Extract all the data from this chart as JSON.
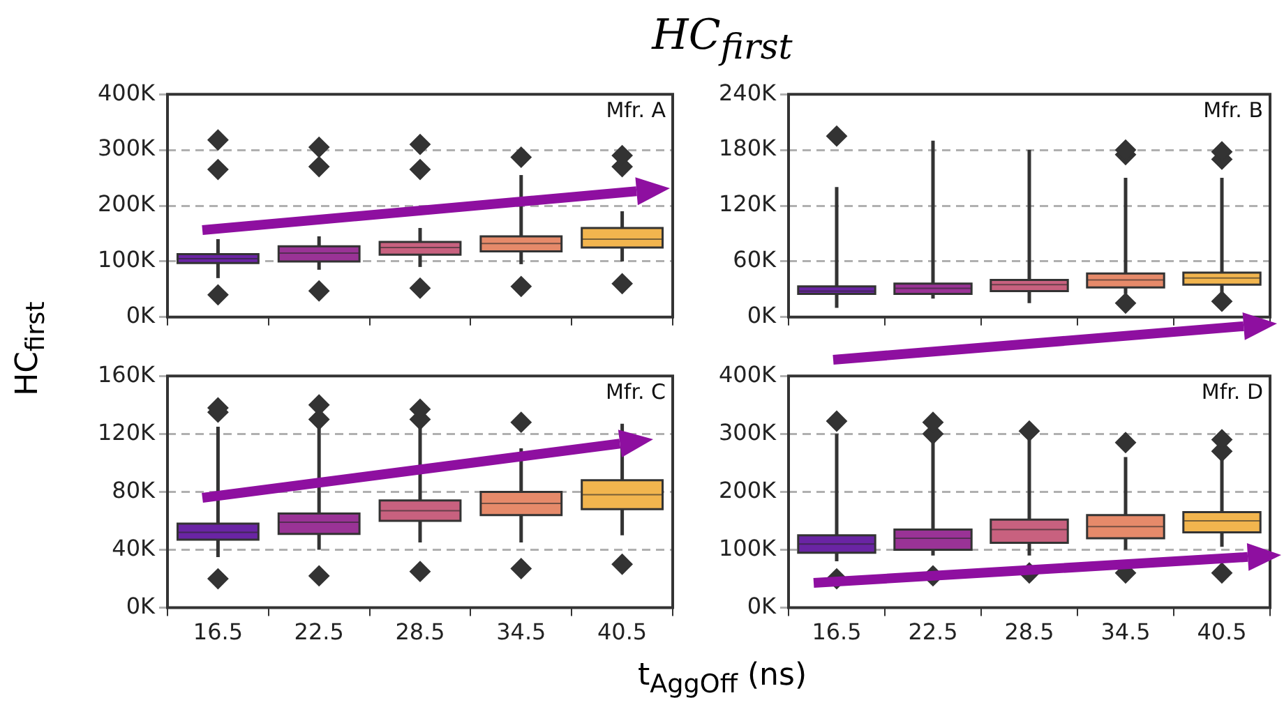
{
  "chart_data": [
    {
      "type": "box",
      "title": "HC$_{first}$",
      "ylabel": "HC$_{first}$",
      "xlabel": "t$_{AggOff}$ (ns)",
      "annotations": [
        "Mfr. A"
      ],
      "categories": [
        "16.5",
        "22.5",
        "28.5",
        "34.5",
        "40.5"
      ],
      "colors": [
        "#6a24a4",
        "#9a3396",
        "#c8617f",
        "#e68a6a",
        "#f2b54e"
      ],
      "marker": "diamond",
      "grid": "y",
      "tick_labels": "y",
      "ylim": [
        0,
        400000
      ],
      "yticks": [
        {
          "value": 0,
          "label": "0K"
        },
        {
          "value": 100000,
          "label": "100K"
        },
        {
          "value": 200000,
          "label": "200K"
        },
        {
          "value": 300000,
          "label": "300K"
        },
        {
          "value": 400000,
          "label": "400K"
        }
      ],
      "boxes": [
        {
          "low": 70000,
          "q1": 97000,
          "median": 105000,
          "q3": 113000,
          "high": 140000,
          "outliers": [
            40000,
            265000,
            318000
          ]
        },
        {
          "low": 85000,
          "q1": 100000,
          "median": 115000,
          "q3": 127000,
          "high": 145000,
          "outliers": [
            47000,
            270000,
            305000
          ]
        },
        {
          "low": 90000,
          "q1": 112000,
          "median": 125000,
          "q3": 135000,
          "high": 160000,
          "outliers": [
            52000,
            265000,
            310000
          ]
        },
        {
          "low": 95000,
          "q1": 118000,
          "median": 132000,
          "q3": 145000,
          "high": 255000,
          "outliers": [
            55000,
            287000
          ]
        },
        {
          "low": 100000,
          "q1": 125000,
          "median": 140000,
          "q3": 160000,
          "high": 190000,
          "outliers": [
            60000,
            270000,
            290000
          ]
        }
      ]
    },
    {
      "type": "box",
      "annotations": [
        "Mfr. B"
      ],
      "categories": [
        "16.5",
        "22.5",
        "28.5",
        "34.5",
        "40.5"
      ],
      "colors": [
        "#6a24a4",
        "#9a3396",
        "#c8617f",
        "#e68a6a",
        "#f2b54e"
      ],
      "marker": "diamond",
      "grid": "y",
      "tick_labels": "y",
      "ylim": [
        0,
        240000
      ],
      "yticks": [
        {
          "value": 0,
          "label": "0K"
        },
        {
          "value": 60000,
          "label": "60K"
        },
        {
          "value": 120000,
          "label": "120K"
        },
        {
          "value": 180000,
          "label": "180K"
        },
        {
          "value": 240000,
          "label": "240K"
        }
      ],
      "boxes": [
        {
          "low": 10000,
          "q1": 25000,
          "median": 28000,
          "q3": 33000,
          "high": 140000,
          "outliers": [
            195000
          ]
        },
        {
          "low": 20000,
          "q1": 25000,
          "median": 31000,
          "q3": 36000,
          "high": 190000
        },
        {
          "low": 15000,
          "q1": 28000,
          "median": 35000,
          "q3": 40000,
          "high": 180000
        },
        {
          "low": 25000,
          "q1": 32000,
          "median": 40000,
          "q3": 47000,
          "high": 150000,
          "outliers": [
            15000,
            175000,
            180000
          ]
        },
        {
          "low": 25000,
          "q1": 35000,
          "median": 42000,
          "q3": 48000,
          "high": 150000,
          "outliers": [
            17000,
            170000,
            178000
          ]
        }
      ]
    },
    {
      "type": "box",
      "annotations": [
        "Mfr. C"
      ],
      "categories": [
        "16.5",
        "22.5",
        "28.5",
        "34.5",
        "40.5"
      ],
      "colors": [
        "#6a24a4",
        "#9a3396",
        "#c8617f",
        "#e68a6a",
        "#f2b54e"
      ],
      "marker": "diamond",
      "grid": "y",
      "ylim": [
        0,
        160000
      ],
      "yticks": [
        {
          "value": 0,
          "label": "0K"
        },
        {
          "value": 40000,
          "label": "40K"
        },
        {
          "value": 80000,
          "label": "80K"
        },
        {
          "value": 120000,
          "label": "120K"
        },
        {
          "value": 160000,
          "label": "160K"
        }
      ],
      "boxes": [
        {
          "low": 35000,
          "q1": 47000,
          "median": 52000,
          "q3": 58000,
          "high": 125000,
          "outliers": [
            20000,
            135000,
            138000
          ]
        },
        {
          "low": 40000,
          "q1": 51000,
          "median": 59000,
          "q3": 65000,
          "high": 125000,
          "outliers": [
            22000,
            130000,
            140000
          ]
        },
        {
          "low": 45000,
          "q1": 60000,
          "median": 67000,
          "q3": 74000,
          "high": 125000,
          "outliers": [
            25000,
            130000,
            137000
          ]
        },
        {
          "low": 45000,
          "q1": 64000,
          "median": 72000,
          "q3": 80000,
          "high": 110000,
          "outliers": [
            27000,
            128000
          ]
        },
        {
          "low": 50000,
          "q1": 68000,
          "median": 78000,
          "q3": 88000,
          "high": 127000,
          "outliers": [
            30000
          ]
        }
      ]
    },
    {
      "type": "box",
      "annotations": [
        "Mfr. D"
      ],
      "categories": [
        "16.5",
        "22.5",
        "28.5",
        "34.5",
        "40.5"
      ],
      "colors": [
        "#6a24a4",
        "#9a3396",
        "#c8617f",
        "#e68a6a",
        "#f2b54e"
      ],
      "marker": "diamond",
      "grid": "y",
      "ylim": [
        0,
        400000
      ],
      "yticks": [
        {
          "value": 0,
          "label": "0K"
        },
        {
          "value": 100000,
          "label": "100K"
        },
        {
          "value": 200000,
          "label": "200K"
        },
        {
          "value": 300000,
          "label": "300K"
        },
        {
          "value": 400000,
          "label": "400K"
        }
      ],
      "boxes": [
        {
          "low": 80000,
          "q1": 95000,
          "median": 110000,
          "q3": 125000,
          "high": 300000,
          "outliers": [
            50000,
            322000
          ]
        },
        {
          "low": 90000,
          "q1": 100000,
          "median": 120000,
          "q3": 135000,
          "high": 290000,
          "outliers": [
            55000,
            300000,
            320000
          ]
        },
        {
          "low": 90000,
          "q1": 112000,
          "median": 135000,
          "q3": 152000,
          "high": 290000,
          "outliers": [
            60000,
            305000
          ]
        },
        {
          "low": 100000,
          "q1": 120000,
          "median": 140000,
          "q3": 160000,
          "high": 260000,
          "outliers": [
            60000,
            285000
          ]
        },
        {
          "low": 105000,
          "q1": 130000,
          "median": 150000,
          "q3": 165000,
          "high": 260000,
          "outliers": [
            60000,
            270000,
            290000
          ]
        }
      ]
    }
  ]
}
